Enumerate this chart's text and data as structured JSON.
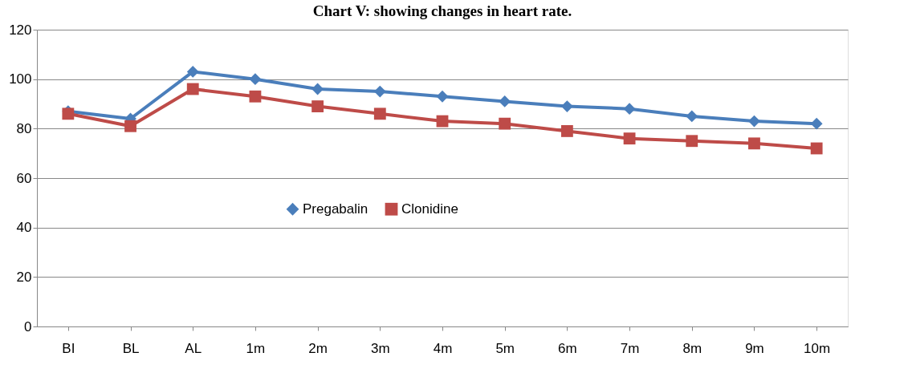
{
  "chart_data": {
    "type": "line",
    "title": "Chart V: showing changes in heart rate.",
    "categories": [
      "BI",
      "BL",
      "AL",
      "1m",
      "2m",
      "3m",
      "4m",
      "5m",
      "6m",
      "7m",
      "8m",
      "9m",
      "10m"
    ],
    "series": [
      {
        "name": "Pregabalin",
        "color": "#4a7ebb",
        "marker": "diamond",
        "values": [
          87,
          84,
          103,
          100,
          96,
          95,
          93,
          91,
          89,
          88,
          85,
          83,
          82
        ]
      },
      {
        "name": "Clonidine",
        "color": "#be4b48",
        "marker": "square",
        "values": [
          86,
          81,
          96,
          93,
          89,
          86,
          83,
          82,
          79,
          76,
          75,
          74,
          72
        ]
      }
    ],
    "ylim": [
      0,
      120
    ],
    "yticks": [
      0,
      20,
      40,
      60,
      80,
      100,
      120
    ],
    "grid": "y",
    "legend": "center",
    "line_style": "solid"
  }
}
